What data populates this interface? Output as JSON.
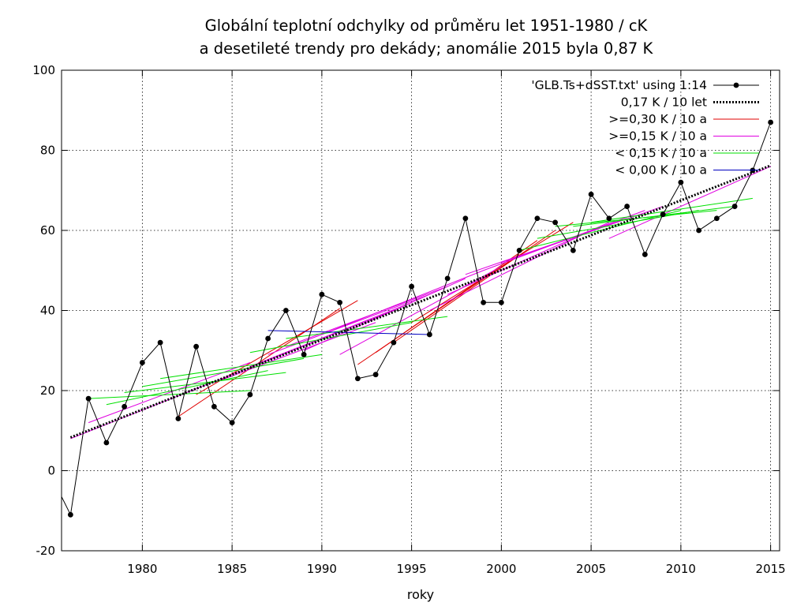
{
  "chart_data": {
    "type": "line",
    "title_lines": [
      "Globální teplotní odchylky od průměru let 1951-1980 / cK",
      "a desetileté trendy pro dekády; anomálie 2015 byla 0,87 K"
    ],
    "xlabel": "roky",
    "ylabel": "",
    "xlim": [
      1975.5,
      2015.5
    ],
    "ylim": [
      -20,
      100
    ],
    "xticks": [
      1980,
      1985,
      1990,
      1995,
      2000,
      2005,
      2010,
      2015
    ],
    "yticks": [
      -20,
      0,
      20,
      40,
      60,
      80,
      100
    ],
    "grid": true,
    "legend_position": "top-right",
    "series": [
      {
        "name": "'GLB.Ts+dSST.txt' using 1:14",
        "color": "#000000",
        "x": [
          1975,
          1976,
          1977,
          1978,
          1979,
          1980,
          1981,
          1982,
          1983,
          1984,
          1985,
          1986,
          1987,
          1988,
          1989,
          1990,
          1991,
          1992,
          1993,
          1994,
          1995,
          1996,
          1997,
          1998,
          1999,
          2000,
          2001,
          2002,
          2003,
          2004,
          2005,
          2006,
          2007,
          2008,
          2009,
          2010,
          2011,
          2012,
          2013,
          2014,
          2015
        ],
        "y": [
          -2,
          -11,
          18,
          7,
          16,
          27,
          32,
          13,
          31,
          16,
          12,
          19,
          33,
          40,
          29,
          44,
          42,
          23,
          24,
          32,
          46,
          34,
          48,
          63,
          42,
          42,
          55,
          63,
          62,
          55,
          69,
          63,
          66,
          54,
          64,
          72,
          60,
          63,
          66,
          75,
          87
        ]
      },
      {
        "name": "0,17 K / 10 let",
        "color": "#000000",
        "x": [
          1976,
          2015
        ],
        "y": [
          8.3,
          76.2
        ]
      }
    ],
    "trend_groups": [
      {
        "name": ">=0,30 K / 10 a",
        "color": "#e00000",
        "segments": [
          {
            "x": [
              1982,
              1991
            ],
            "y": [
              13.5,
              40.5
            ]
          },
          {
            "x": [
              1983,
              1992
            ],
            "y": [
              19,
              42.5
            ]
          },
          {
            "x": [
              1992,
              2001
            ],
            "y": [
              26.5,
              54
            ]
          },
          {
            "x": [
              1993,
              2002
            ],
            "y": [
              29.5,
              57.5
            ]
          },
          {
            "x": [
              1994,
              2003
            ],
            "y": [
              32,
              60
            ]
          },
          {
            "x": [
              1995,
              2004
            ],
            "y": [
              37,
              62
            ]
          }
        ]
      },
      {
        "name": ">=0,15 K / 10 a",
        "color": "#e000e0",
        "segments": [
          {
            "x": [
              1976,
              1985
            ],
            "y": [
              8,
              24
            ]
          },
          {
            "x": [
              1977,
              1986
            ],
            "y": [
              12,
              27
            ]
          },
          {
            "x": [
              1984,
              1993
            ],
            "y": [
              22,
              37
            ]
          },
          {
            "x": [
              1985,
              1994
            ],
            "y": [
              24,
              40
            ]
          },
          {
            "x": [
              1986,
              1995
            ],
            "y": [
              26,
              42
            ]
          },
          {
            "x": [
              1987,
              1996
            ],
            "y": [
              29,
              44
            ]
          },
          {
            "x": [
              1988,
              1997
            ],
            "y": [
              31,
              46
            ]
          },
          {
            "x": [
              1989,
              1998
            ],
            "y": [
              30,
              48
            ]
          },
          {
            "x": [
              1990,
              1999
            ],
            "y": [
              34,
              50
            ]
          },
          {
            "x": [
              1991,
              2000
            ],
            "y": [
              29,
              51
            ]
          },
          {
            "x": [
              1996,
              2005
            ],
            "y": [
              40,
              60
            ]
          },
          {
            "x": [
              1997,
              2006
            ],
            "y": [
              44,
              62
            ]
          },
          {
            "x": [
              1998,
              2007
            ],
            "y": [
              49,
              63
            ]
          },
          {
            "x": [
              1999,
              2008
            ],
            "y": [
              50,
              65
            ]
          },
          {
            "x": [
              2000,
              2009
            ],
            "y": [
              52,
              66
            ]
          },
          {
            "x": [
              2006,
              2015
            ],
            "y": [
              58,
              76
            ]
          }
        ]
      },
      {
        "name": "< 0,15 K / 10 a",
        "color": "#00e000",
        "segments": [
          {
            "x": [
              1977,
              1986
            ],
            "y": [
              18,
              20
            ]
          },
          {
            "x": [
              1978,
              1987
            ],
            "y": [
              16.5,
              25
            ]
          },
          {
            "x": [
              1979,
              1988
            ],
            "y": [
              19.5,
              24.5
            ]
          },
          {
            "x": [
              1980,
              1989
            ],
            "y": [
              21,
              28
            ]
          },
          {
            "x": [
              1981,
              1990
            ],
            "y": [
              23,
              29
            ]
          },
          {
            "x": [
              1986,
              1995
            ],
            "y": [
              29.5,
              37
            ]
          },
          {
            "x": [
              1988,
              1997
            ],
            "y": [
              33,
              38.5
            ]
          },
          {
            "x": [
              2001,
              2010
            ],
            "y": [
              55,
              65
            ]
          },
          {
            "x": [
              2002,
              2011
            ],
            "y": [
              58,
              65
            ]
          },
          {
            "x": [
              2003,
              2012
            ],
            "y": [
              61,
              65
            ]
          },
          {
            "x": [
              2004,
              2013
            ],
            "y": [
              61,
              66
            ]
          },
          {
            "x": [
              2005,
              2014
            ],
            "y": [
              62,
              68
            ]
          }
        ]
      },
      {
        "name": "< 0,00 K / 10 a",
        "color": "#0000c0",
        "segments": [
          {
            "x": [
              1987,
              1996
            ],
            "y": [
              35,
              34
            ]
          }
        ]
      }
    ]
  }
}
